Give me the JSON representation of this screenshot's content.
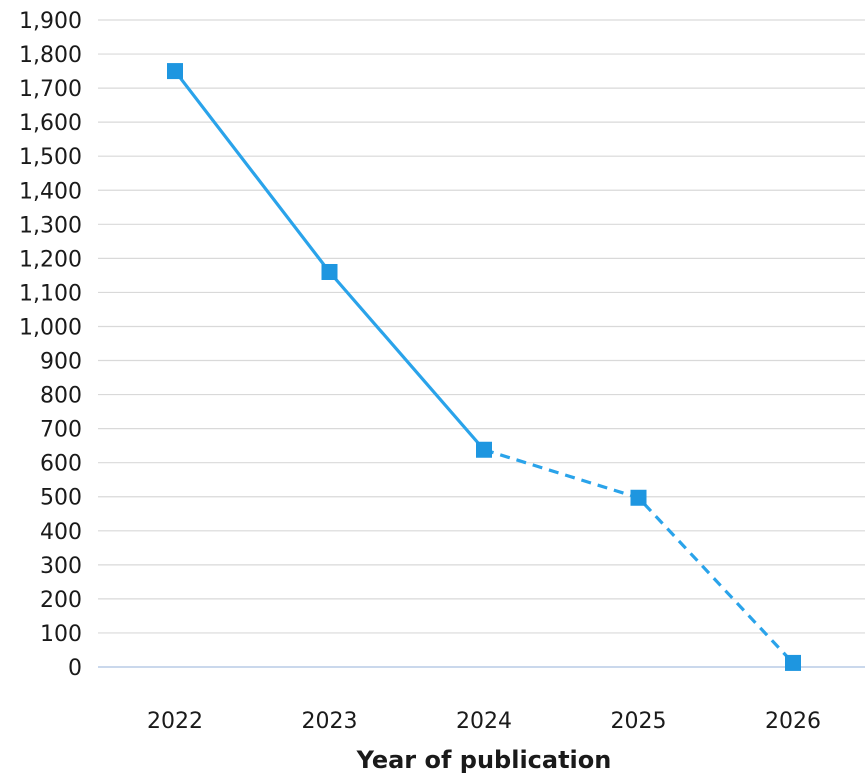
{
  "chart_data": {
    "type": "line",
    "title": "",
    "xlabel": "Year of publication",
    "ylabel": "",
    "categories": [
      "2022",
      "2023",
      "2024",
      "2025",
      "2026"
    ],
    "series": [
      {
        "values": [
          1750,
          1160,
          638,
          497,
          12
        ],
        "dashed_from_index": 2,
        "color": "#2aa3ea",
        "marker": "square",
        "marker_color": "#1e96e0"
      }
    ],
    "ylim": [
      0,
      1900
    ],
    "yticks": [
      0,
      100,
      200,
      300,
      400,
      500,
      600,
      700,
      800,
      900,
      1000,
      1100,
      1200,
      1300,
      1400,
      1500,
      1600,
      1700,
      1800,
      1900
    ],
    "ytick_labels": [
      "0",
      "100",
      "200",
      "300",
      "400",
      "500",
      "600",
      "700",
      "800",
      "900",
      "1,000",
      "1,100",
      "1,200",
      "1,300",
      "1,400",
      "1,500",
      "1,600",
      "1,700",
      "1,800",
      "1,900"
    ],
    "grid": true,
    "legend": "none"
  }
}
